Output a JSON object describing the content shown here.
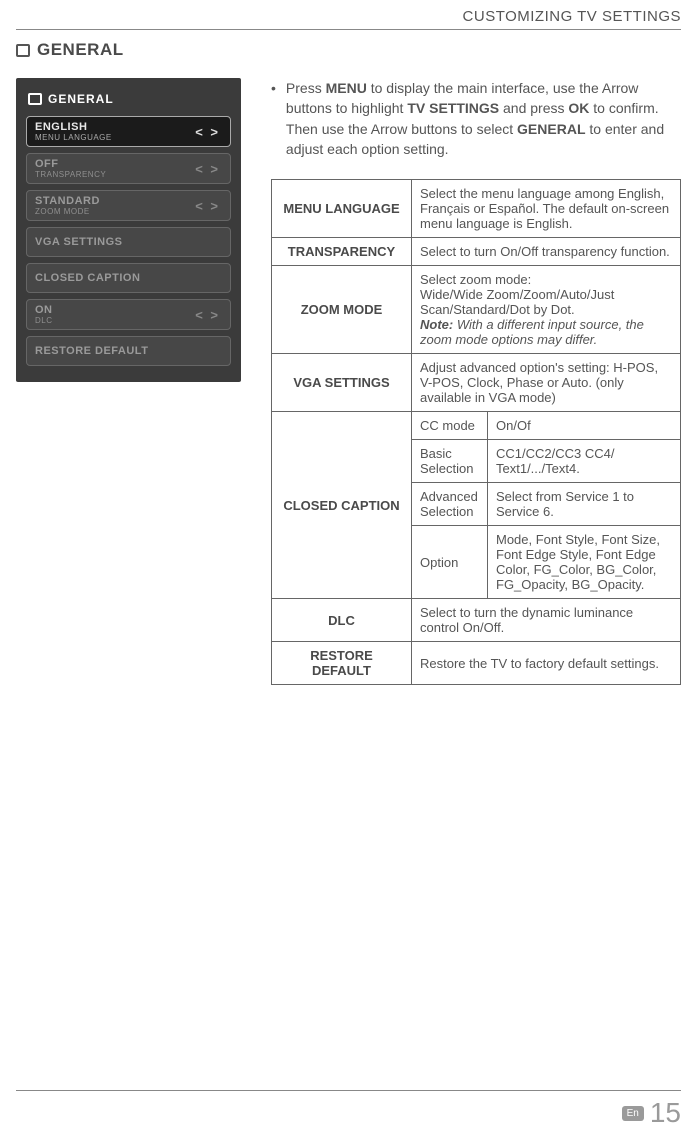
{
  "header": {
    "title": "CUSTOMIZING TV SETTINGS"
  },
  "section": {
    "title": "GENERAL"
  },
  "screenshot": {
    "header": "GENERAL",
    "rows": [
      {
        "value": "ENGLISH",
        "label": "MENU LANGUAGE",
        "arrows": true,
        "active": true,
        "dim": false
      },
      {
        "value": "OFF",
        "label": "TRANSPARENCY",
        "arrows": true,
        "active": false,
        "dim": true
      },
      {
        "value": "STANDARD",
        "label": "ZOOM MODE",
        "arrows": true,
        "active": false,
        "dim": true
      },
      {
        "value": "VGA SETTINGS",
        "label": "",
        "arrows": false,
        "active": false,
        "dim": true
      },
      {
        "value": "CLOSED CAPTION",
        "label": "",
        "arrows": false,
        "active": false,
        "dim": true
      },
      {
        "value": "ON",
        "label": "DLC",
        "arrows": true,
        "active": false,
        "dim": true
      },
      {
        "value": "RESTORE DEFAULT",
        "label": "",
        "arrows": false,
        "active": false,
        "dim": true
      }
    ]
  },
  "instruction": {
    "pre1": "Press ",
    "b1": "MENU",
    "mid1": " to display the main interface, use the Arrow buttons to highlight ",
    "b2": "TV SETTINGS",
    "mid2": " and press ",
    "b3": "OK",
    "mid3": " to confirm. Then use the Arrow buttons to select ",
    "b4": "GENERAL",
    "post": " to enter and adjust each option setting."
  },
  "table": {
    "menu_language": {
      "label": "MENU LANGUAGE",
      "desc": "Select the menu language among English, Français or Español. The default on-screen menu language is English."
    },
    "transparency": {
      "label": "TRANSPARENCY",
      "desc": "Select to turn On/Off transparency function."
    },
    "zoom_mode": {
      "label": "ZOOM MODE",
      "desc_line1": "Select zoom mode:",
      "desc_line2": "Wide/Wide Zoom/Zoom/Auto/Just Scan/Standard/Dot by Dot.",
      "note_prefix": "Note:",
      "note_text": " With a different input source, the zoom mode options may differ."
    },
    "vga": {
      "label": "VGA SETTINGS",
      "desc": "Adjust advanced option's setting: H-POS, V-POS, Clock, Phase or Auto. (only available in VGA mode)"
    },
    "cc": {
      "label": "CLOSED CAPTION",
      "rows": [
        {
          "k": "CC mode",
          "v": "On/Of"
        },
        {
          "k": "Basic Selection",
          "v": "CC1/CC2/CC3 CC4/ Text1/.../Text4."
        },
        {
          "k": "Advanced Selection",
          "v": "Select from Service 1 to Service 6."
        },
        {
          "k": "Option",
          "v": "Mode, Font Style, Font Size, Font Edge Style, Font Edge Color, FG_Color, BG_Color, FG_Opacity, BG_Opacity."
        }
      ]
    },
    "dlc": {
      "label": "DLC",
      "desc": "Select to turn the dynamic luminance control On/Off."
    },
    "restore": {
      "label": "RESTORE DEFAULT",
      "desc": "Restore the TV to factory default settings."
    }
  },
  "footer": {
    "lang": "En",
    "page": "15"
  }
}
